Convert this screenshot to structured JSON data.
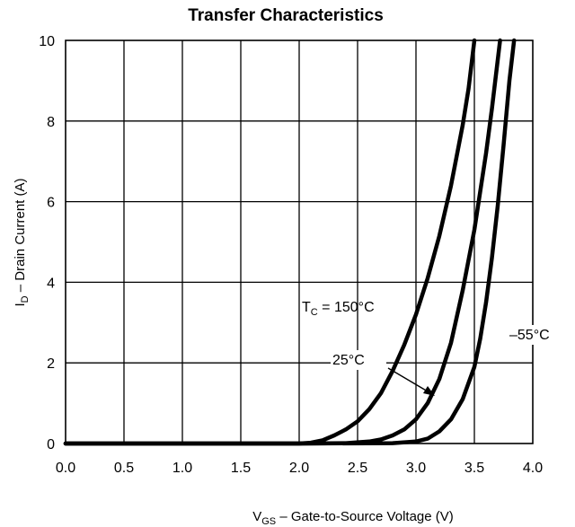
{
  "chart_data": {
    "type": "line",
    "title": "Transfer Characteristics",
    "xlabel": {
      "main": "V",
      "sub": "GS",
      "rest": "  –  Gate-to-Source Voltage (V)"
    },
    "ylabel": {
      "main": "I",
      "sub": "D",
      "rest": "  –  Drain Current (A)"
    },
    "xlim": [
      0,
      4
    ],
    "ylim": [
      0,
      10
    ],
    "x_ticks": [
      "0.0",
      "0.5",
      "1.0",
      "1.5",
      "2.0",
      "2.5",
      "3.0",
      "3.5",
      "4.0"
    ],
    "y_ticks": [
      "0",
      "2",
      "4",
      "6",
      "8",
      "10"
    ],
    "grid": true,
    "series": [
      {
        "name": "TC = 150°C",
        "points": [
          [
            0,
            0
          ],
          [
            1.5,
            0
          ],
          [
            2.0,
            0
          ],
          [
            2.1,
            0.02
          ],
          [
            2.2,
            0.08
          ],
          [
            2.3,
            0.2
          ],
          [
            2.4,
            0.35
          ],
          [
            2.5,
            0.55
          ],
          [
            2.6,
            0.85
          ],
          [
            2.7,
            1.25
          ],
          [
            2.8,
            1.8
          ],
          [
            2.9,
            2.45
          ],
          [
            3.0,
            3.2
          ],
          [
            3.1,
            4.1
          ],
          [
            3.2,
            5.15
          ],
          [
            3.3,
            6.4
          ],
          [
            3.4,
            7.9
          ],
          [
            3.45,
            8.8
          ],
          [
            3.5,
            10
          ]
        ]
      },
      {
        "name": "25°C",
        "points": [
          [
            0,
            0
          ],
          [
            2.0,
            0
          ],
          [
            2.4,
            0.01
          ],
          [
            2.6,
            0.05
          ],
          [
            2.7,
            0.1
          ],
          [
            2.8,
            0.2
          ],
          [
            2.9,
            0.35
          ],
          [
            3.0,
            0.6
          ],
          [
            3.1,
            1.0
          ],
          [
            3.2,
            1.6
          ],
          [
            3.3,
            2.5
          ],
          [
            3.4,
            3.8
          ],
          [
            3.5,
            5.3
          ],
          [
            3.6,
            7.2
          ],
          [
            3.65,
            8.3
          ],
          [
            3.72,
            10
          ]
        ]
      },
      {
        "name": "–55°C",
        "points": [
          [
            0,
            0
          ],
          [
            2.0,
            0
          ],
          [
            2.8,
            0.01
          ],
          [
            3.0,
            0.05
          ],
          [
            3.1,
            0.12
          ],
          [
            3.2,
            0.3
          ],
          [
            3.3,
            0.6
          ],
          [
            3.4,
            1.1
          ],
          [
            3.5,
            1.9
          ],
          [
            3.55,
            2.6
          ],
          [
            3.6,
            3.5
          ],
          [
            3.65,
            4.6
          ],
          [
            3.7,
            5.9
          ],
          [
            3.75,
            7.4
          ],
          [
            3.8,
            9.0
          ],
          [
            3.84,
            10
          ]
        ]
      }
    ],
    "annotations": [
      {
        "main": "T",
        "sub": "C",
        "rest": " = 150°C"
      },
      {
        "text": "25°C"
      },
      {
        "text": "–55°C"
      }
    ],
    "line_color": "#000000",
    "grid_color": "#000000"
  }
}
